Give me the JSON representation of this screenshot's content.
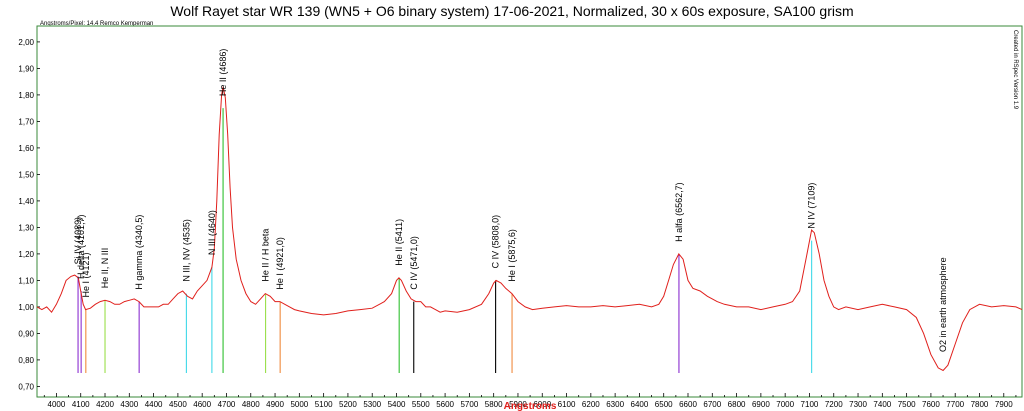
{
  "chart_data": {
    "type": "line",
    "title": "Wolf Rayet star WR 139 (WN5 + O6 binary system) 17-06-2021, Normalized, 30 x 60s exposure, SA100 grism",
    "scale_note": "Angstroms/Pixel: 14.4 Remco Kemperman",
    "software_note": "Created in RSpec Version 1.9",
    "xlabel": "Angstroms",
    "xlabel_color": "#e0201c",
    "ylabel": "",
    "xlim": [
      3920,
      7975
    ],
    "ylim": [
      0.66,
      2.06
    ],
    "x_ticks": [
      4000,
      4100,
      4200,
      4300,
      4400,
      4500,
      4600,
      4700,
      4800,
      4900,
      5000,
      5100,
      5200,
      5300,
      5400,
      5500,
      5600,
      5700,
      5800,
      5900,
      6000,
      6100,
      6200,
      6300,
      6400,
      6500,
      6600,
      6700,
      6800,
      6900,
      7000,
      7100,
      7200,
      7300,
      7400,
      7500,
      7600,
      7700,
      7800,
      7900
    ],
    "y_ticks": [
      "0,70",
      "0,80",
      "0,90",
      "1,00",
      "1,10",
      "1,20",
      "1,30",
      "1,40",
      "1,50",
      "1,60",
      "1,70",
      "1,80",
      "1,90",
      "2,00"
    ],
    "y_tick_values": [
      0.7,
      0.8,
      0.9,
      1.0,
      1.1,
      1.2,
      1.3,
      1.4,
      1.5,
      1.6,
      1.7,
      1.8,
      1.9,
      2.0
    ],
    "grid": false,
    "frame_color": "#3a8a3a",
    "series": [
      {
        "color": "#e0201c",
        "points": [
          [
            3920,
            1.0
          ],
          [
            3940,
            0.99
          ],
          [
            3960,
            1.0
          ],
          [
            3980,
            0.98
          ],
          [
            4000,
            1.01
          ],
          [
            4020,
            1.05
          ],
          [
            4040,
            1.1
          ],
          [
            4060,
            1.115
          ],
          [
            4075,
            1.12
          ],
          [
            4090,
            1.11
          ],
          [
            4100,
            1.06
          ],
          [
            4110,
            1.01
          ],
          [
            4120,
            0.99
          ],
          [
            4140,
            0.995
          ],
          [
            4160,
            1.01
          ],
          [
            4180,
            1.02
          ],
          [
            4200,
            1.025
          ],
          [
            4220,
            1.02
          ],
          [
            4240,
            1.01
          ],
          [
            4260,
            1.01
          ],
          [
            4280,
            1.02
          ],
          [
            4300,
            1.025
          ],
          [
            4320,
            1.03
          ],
          [
            4340,
            1.02
          ],
          [
            4360,
            1.0
          ],
          [
            4380,
            1.0
          ],
          [
            4400,
            1.0
          ],
          [
            4420,
            1.0
          ],
          [
            4440,
            1.01
          ],
          [
            4460,
            1.01
          ],
          [
            4480,
            1.03
          ],
          [
            4500,
            1.05
          ],
          [
            4520,
            1.06
          ],
          [
            4540,
            1.04
          ],
          [
            4560,
            1.03
          ],
          [
            4580,
            1.06
          ],
          [
            4600,
            1.08
          ],
          [
            4620,
            1.1
          ],
          [
            4640,
            1.15
          ],
          [
            4650,
            1.22
          ],
          [
            4660,
            1.4
          ],
          [
            4670,
            1.65
          ],
          [
            4680,
            1.8
          ],
          [
            4686,
            1.83
          ],
          [
            4695,
            1.79
          ],
          [
            4705,
            1.65
          ],
          [
            4715,
            1.45
          ],
          [
            4725,
            1.3
          ],
          [
            4740,
            1.18
          ],
          [
            4760,
            1.1
          ],
          [
            4780,
            1.05
          ],
          [
            4800,
            1.02
          ],
          [
            4820,
            1.01
          ],
          [
            4840,
            1.03
          ],
          [
            4860,
            1.05
          ],
          [
            4880,
            1.04
          ],
          [
            4900,
            1.02
          ],
          [
            4920,
            1.02
          ],
          [
            4940,
            1.01
          ],
          [
            4960,
            1.0
          ],
          [
            4980,
            0.99
          ],
          [
            5000,
            0.985
          ],
          [
            5050,
            0.975
          ],
          [
            5100,
            0.97
          ],
          [
            5150,
            0.975
          ],
          [
            5200,
            0.985
          ],
          [
            5250,
            0.99
          ],
          [
            5300,
            0.995
          ],
          [
            5350,
            1.02
          ],
          [
            5380,
            1.05
          ],
          [
            5400,
            1.1
          ],
          [
            5410,
            1.11
          ],
          [
            5420,
            1.1
          ],
          [
            5440,
            1.06
          ],
          [
            5460,
            1.03
          ],
          [
            5480,
            1.02
          ],
          [
            5500,
            1.02
          ],
          [
            5520,
            1.0
          ],
          [
            5540,
            1.0
          ],
          [
            5560,
            0.99
          ],
          [
            5580,
            0.98
          ],
          [
            5600,
            0.985
          ],
          [
            5650,
            0.98
          ],
          [
            5700,
            0.99
          ],
          [
            5750,
            1.01
          ],
          [
            5780,
            1.05
          ],
          [
            5800,
            1.09
          ],
          [
            5810,
            1.1
          ],
          [
            5830,
            1.09
          ],
          [
            5850,
            1.07
          ],
          [
            5875,
            1.05
          ],
          [
            5900,
            1.02
          ],
          [
            5930,
            1.0
          ],
          [
            5960,
            0.99
          ],
          [
            6000,
            0.995
          ],
          [
            6050,
            1.0
          ],
          [
            6100,
            1.005
          ],
          [
            6150,
            1.0
          ],
          [
            6200,
            1.0
          ],
          [
            6250,
            1.005
          ],
          [
            6300,
            1.0
          ],
          [
            6350,
            1.005
          ],
          [
            6400,
            1.01
          ],
          [
            6450,
            1.0
          ],
          [
            6480,
            1.01
          ],
          [
            6500,
            1.04
          ],
          [
            6520,
            1.1
          ],
          [
            6540,
            1.16
          ],
          [
            6562,
            1.2
          ],
          [
            6580,
            1.18
          ],
          [
            6600,
            1.1
          ],
          [
            6620,
            1.07
          ],
          [
            6650,
            1.06
          ],
          [
            6680,
            1.04
          ],
          [
            6700,
            1.03
          ],
          [
            6720,
            1.02
          ],
          [
            6750,
            1.01
          ],
          [
            6800,
            1.0
          ],
          [
            6850,
            1.0
          ],
          [
            6900,
            0.99
          ],
          [
            6950,
            1.0
          ],
          [
            7000,
            1.01
          ],
          [
            7030,
            1.02
          ],
          [
            7060,
            1.06
          ],
          [
            7090,
            1.2
          ],
          [
            7109,
            1.29
          ],
          [
            7120,
            1.28
          ],
          [
            7140,
            1.2
          ],
          [
            7160,
            1.1
          ],
          [
            7180,
            1.04
          ],
          [
            7200,
            1.0
          ],
          [
            7220,
            0.99
          ],
          [
            7250,
            1.0
          ],
          [
            7300,
            0.99
          ],
          [
            7350,
            1.0
          ],
          [
            7400,
            1.01
          ],
          [
            7450,
            1.0
          ],
          [
            7500,
            0.99
          ],
          [
            7540,
            0.96
          ],
          [
            7570,
            0.9
          ],
          [
            7600,
            0.82
          ],
          [
            7630,
            0.77
          ],
          [
            7650,
            0.76
          ],
          [
            7670,
            0.78
          ],
          [
            7700,
            0.86
          ],
          [
            7730,
            0.94
          ],
          [
            7760,
            0.99
          ],
          [
            7800,
            1.01
          ],
          [
            7850,
            1.0
          ],
          [
            7900,
            1.005
          ],
          [
            7950,
            1.0
          ],
          [
            7975,
            0.99
          ]
        ]
      }
    ],
    "markers": [
      {
        "label": "Si IV (4089)",
        "x": 4089,
        "y": 1.115,
        "color": "#8b2fd0"
      },
      {
        "label": "H delta (4101,7)",
        "x": 4101.7,
        "y": 1.06,
        "color": "#8b2fd0"
      },
      {
        "label": "He I (4121)",
        "x": 4121,
        "y": 0.99,
        "color": "#f08a3c"
      },
      {
        "label": "He II, N III",
        "x": 4200,
        "y": 1.025,
        "color": "#9adf4a"
      },
      {
        "label": "H gamma (4340,5)",
        "x": 4340.5,
        "y": 1.02,
        "color": "#8b2fd0"
      },
      {
        "label": "N III, NV (4535)",
        "x": 4535,
        "y": 1.05,
        "color": "#3fd8e8"
      },
      {
        "label": "N III (4640)",
        "x": 4640,
        "y": 1.15,
        "color": "#3fd8e8"
      },
      {
        "label": "He II (4686)",
        "x": 4686,
        "y": 1.75,
        "color": "#2fc02f"
      },
      {
        "label": "He II / H beta",
        "x": 4861,
        "y": 1.05,
        "color": "#9adf4a"
      },
      {
        "label": "He I (4921,0)",
        "x": 4921,
        "y": 1.02,
        "color": "#f08a3c"
      },
      {
        "label": "He II (5411)",
        "x": 5411,
        "y": 1.11,
        "color": "#2fc02f"
      },
      {
        "label": "C IV (5471,0)",
        "x": 5471,
        "y": 1.02,
        "color": "#000000"
      },
      {
        "label": "C IV (5808,0)",
        "x": 5808,
        "y": 1.1,
        "color": "#000000"
      },
      {
        "label": "He I (5875,6)",
        "x": 5875.6,
        "y": 1.05,
        "color": "#f08a3c"
      },
      {
        "label": "H alfa (6562,7)",
        "x": 6562.7,
        "y": 1.2,
        "color": "#8b2fd0"
      },
      {
        "label": "N IV (7109)",
        "x": 7109,
        "y": 1.25,
        "color": "#3fd8e8"
      },
      {
        "label": "O2 in earth atmosphere",
        "x": 7650,
        "y": null,
        "color": null
      }
    ]
  }
}
